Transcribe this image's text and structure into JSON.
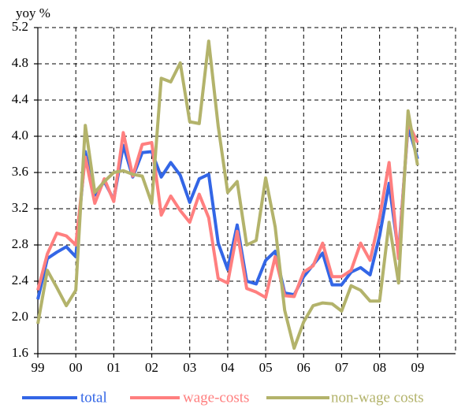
{
  "chart_data": {
    "type": "line",
    "y_label": "yoy %",
    "x": [
      1999,
      1999.25,
      1999.5,
      1999.75,
      2000,
      2000.25,
      2000.5,
      2000.75,
      2001,
      2001.25,
      2001.5,
      2001.75,
      2002,
      2002.25,
      2002.5,
      2002.75,
      2003,
      2003.25,
      2003.5,
      2003.75,
      2004,
      2004.25,
      2004.5,
      2004.75,
      2005,
      2005.25,
      2005.5,
      2005.75,
      2006,
      2006.25,
      2006.5,
      2006.75,
      2007,
      2007.25,
      2007.5,
      2007.75,
      2008,
      2008.25,
      2008.5,
      2008.75,
      2009
    ],
    "series": [
      {
        "name": "total",
        "color": "#3366e6",
        "values": [
          2.2,
          2.65,
          2.72,
          2.78,
          2.67,
          3.83,
          3.35,
          3.5,
          3.3,
          3.9,
          3.55,
          3.82,
          3.83,
          3.55,
          3.71,
          3.57,
          3.27,
          3.53,
          3.58,
          2.82,
          2.53,
          3.02,
          2.4,
          2.37,
          2.63,
          2.73,
          2.27,
          2.25,
          2.45,
          2.58,
          2.71,
          2.36,
          2.36,
          2.5,
          2.55,
          2.47,
          2.9,
          3.48,
          2.7,
          4.12,
          3.75
        ]
      },
      {
        "name": "wage-costs",
        "color": "#ff7f7f",
        "values": [
          2.3,
          2.7,
          2.93,
          2.9,
          2.8,
          3.77,
          3.26,
          3.53,
          3.28,
          4.04,
          3.56,
          3.91,
          3.93,
          3.13,
          3.34,
          3.18,
          3.05,
          3.36,
          3.1,
          2.43,
          2.38,
          2.95,
          2.32,
          2.28,
          2.22,
          2.67,
          2.24,
          2.23,
          2.5,
          2.57,
          2.82,
          2.45,
          2.45,
          2.52,
          2.82,
          2.63,
          3.1,
          3.71,
          2.65,
          4.15,
          3.93
        ]
      },
      {
        "name": "non-wage costs",
        "color": "#b3b36b",
        "values": [
          1.93,
          2.52,
          2.33,
          2.13,
          2.3,
          4.12,
          3.38,
          3.5,
          3.6,
          3.62,
          3.58,
          3.56,
          3.26,
          4.64,
          4.6,
          4.81,
          4.16,
          4.14,
          5.05,
          4.11,
          3.38,
          3.5,
          2.8,
          2.85,
          3.54,
          3.0,
          2.08,
          1.66,
          1.95,
          2.13,
          2.16,
          2.15,
          2.07,
          2.35,
          2.3,
          2.18,
          2.18,
          3.05,
          2.38,
          4.28,
          3.68
        ]
      }
    ],
    "xlim": [
      1999,
      2010
    ],
    "xticks": [
      {
        "value": 1999,
        "label": "99"
      },
      {
        "value": 2000,
        "label": "00"
      },
      {
        "value": 2001,
        "label": "01"
      },
      {
        "value": 2002,
        "label": "02"
      },
      {
        "value": 2003,
        "label": "03"
      },
      {
        "value": 2004,
        "label": "04"
      },
      {
        "value": 2005,
        "label": "05"
      },
      {
        "value": 2006,
        "label": "06"
      },
      {
        "value": 2007,
        "label": "07"
      },
      {
        "value": 2008,
        "label": "08"
      },
      {
        "value": 2009,
        "label": "09"
      }
    ],
    "ylim": [
      1.6,
      5.2
    ],
    "yticks": [
      1.6,
      {
        "value": 2,
        "label": "2.0"
      },
      2.4,
      2.8,
      3.2,
      3.6,
      {
        "value": 4,
        "label": "4.0"
      },
      4.4,
      4.8,
      5.2
    ],
    "grid": true
  }
}
